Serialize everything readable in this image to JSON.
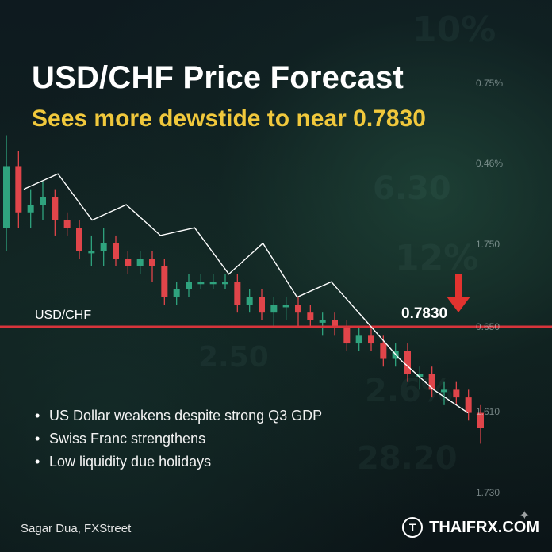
{
  "header": {
    "title": "USD/CHF Price Forecast",
    "subtitle": "Sees more dewstide to near 0.7830"
  },
  "labels": {
    "pair": "USD/CHF",
    "level": "0.7830"
  },
  "bullets": [
    "US Dollar weakens despite strong Q3 GDP",
    "Swiss Franc strengthens",
    "Low liquidity due holidays"
  ],
  "footer": {
    "credit": "Sagar Dua, FXStreet",
    "brand": "THAIFRX.COM",
    "brand_logo": "T"
  },
  "background_text": [
    "10%",
    "6.30",
    "12%",
    "2.6%",
    "28.20",
    "2.50"
  ],
  "colors": {
    "bullish": "#2fa37e",
    "bearish": "#e0454a",
    "support_line": "#d8343b",
    "arrow": "#e2332f",
    "title": "#ffffff",
    "subtitle": "#f0c83c"
  },
  "chart_data": {
    "type": "candlestick",
    "y_tick_labels": [
      "0.75%",
      "0.46%",
      "1.750",
      "0.650",
      "1.610",
      "1.730"
    ],
    "support_level": 0.783,
    "support_label": "0.7830",
    "series_label": "USD/CHF",
    "candles": [
      {
        "o": 0.79,
        "c": 0.798,
        "h": 0.802,
        "l": 0.787
      },
      {
        "o": 0.798,
        "c": 0.792,
        "h": 0.8,
        "l": 0.79
      },
      {
        "o": 0.792,
        "c": 0.793,
        "h": 0.795,
        "l": 0.79
      },
      {
        "o": 0.793,
        "c": 0.794,
        "h": 0.796,
        "l": 0.791
      },
      {
        "o": 0.794,
        "c": 0.791,
        "h": 0.795,
        "l": 0.789
      },
      {
        "o": 0.791,
        "c": 0.79,
        "h": 0.792,
        "l": 0.789
      },
      {
        "o": 0.79,
        "c": 0.787,
        "h": 0.791,
        "l": 0.786
      },
      {
        "o": 0.787,
        "c": 0.787,
        "h": 0.789,
        "l": 0.785
      },
      {
        "o": 0.787,
        "c": 0.788,
        "h": 0.79,
        "l": 0.785
      },
      {
        "o": 0.788,
        "c": 0.786,
        "h": 0.789,
        "l": 0.785
      },
      {
        "o": 0.786,
        "c": 0.785,
        "h": 0.787,
        "l": 0.784
      },
      {
        "o": 0.785,
        "c": 0.786,
        "h": 0.787,
        "l": 0.784
      },
      {
        "o": 0.786,
        "c": 0.785,
        "h": 0.787,
        "l": 0.783
      },
      {
        "o": 0.785,
        "c": 0.781,
        "h": 0.786,
        "l": 0.78
      },
      {
        "o": 0.781,
        "c": 0.782,
        "h": 0.783,
        "l": 0.78
      },
      {
        "o": 0.782,
        "c": 0.783,
        "h": 0.784,
        "l": 0.781
      },
      {
        "o": 0.783,
        "c": 0.783,
        "h": 0.784,
        "l": 0.782
      },
      {
        "o": 0.783,
        "c": 0.783,
        "h": 0.784,
        "l": 0.782
      },
      {
        "o": 0.783,
        "c": 0.783,
        "h": 0.784,
        "l": 0.782
      },
      {
        "o": 0.783,
        "c": 0.78,
        "h": 0.784,
        "l": 0.779
      },
      {
        "o": 0.78,
        "c": 0.781,
        "h": 0.782,
        "l": 0.779
      },
      {
        "o": 0.781,
        "c": 0.779,
        "h": 0.782,
        "l": 0.778
      },
      {
        "o": 0.779,
        "c": 0.78,
        "h": 0.781,
        "l": 0.777
      },
      {
        "o": 0.78,
        "c": 0.78,
        "h": 0.781,
        "l": 0.778
      },
      {
        "o": 0.78,
        "c": 0.779,
        "h": 0.781,
        "l": 0.777
      },
      {
        "o": 0.779,
        "c": 0.778,
        "h": 0.78,
        "l": 0.777
      },
      {
        "o": 0.778,
        "c": 0.778,
        "h": 0.779,
        "l": 0.776
      },
      {
        "o": 0.778,
        "c": 0.777,
        "h": 0.779,
        "l": 0.776
      },
      {
        "o": 0.777,
        "c": 0.775,
        "h": 0.778,
        "l": 0.774
      },
      {
        "o": 0.775,
        "c": 0.776,
        "h": 0.777,
        "l": 0.774
      },
      {
        "o": 0.776,
        "c": 0.775,
        "h": 0.777,
        "l": 0.774
      },
      {
        "o": 0.775,
        "c": 0.773,
        "h": 0.776,
        "l": 0.772
      },
      {
        "o": 0.773,
        "c": 0.774,
        "h": 0.775,
        "l": 0.772
      },
      {
        "o": 0.774,
        "c": 0.771,
        "h": 0.775,
        "l": 0.77
      },
      {
        "o": 0.771,
        "c": 0.771,
        "h": 0.772,
        "l": 0.769
      },
      {
        "o": 0.771,
        "c": 0.769,
        "h": 0.772,
        "l": 0.768
      },
      {
        "o": 0.769,
        "c": 0.769,
        "h": 0.77,
        "l": 0.767
      },
      {
        "o": 0.769,
        "c": 0.768,
        "h": 0.77,
        "l": 0.767
      },
      {
        "o": 0.768,
        "c": 0.766,
        "h": 0.769,
        "l": 0.765
      },
      {
        "o": 0.766,
        "c": 0.764,
        "h": 0.767,
        "l": 0.762
      }
    ],
    "trend_line": [
      0.795,
      0.797,
      0.791,
      0.793,
      0.789,
      0.79,
      0.784,
      0.788,
      0.781,
      0.783,
      0.778,
      0.773,
      0.769,
      0.766
    ],
    "annotations": [
      "down-arrow above support label"
    ]
  }
}
